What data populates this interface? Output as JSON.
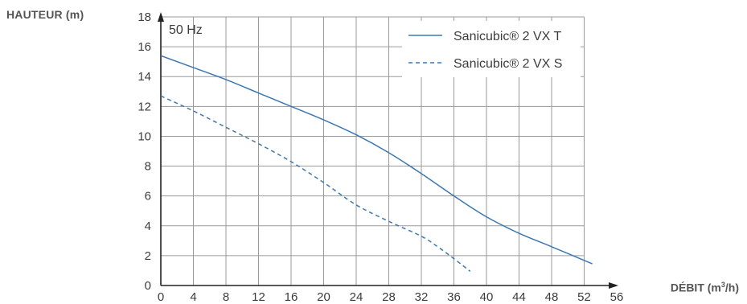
{
  "chart_data": {
    "type": "line",
    "ylabel": "HAUTEUR (m)",
    "xlabel_prefix": "DÉBIT (m",
    "xlabel_sup": "3",
    "xlabel_suffix": "/h)",
    "annotation": "50 Hz",
    "xlim": [
      0,
      56
    ],
    "ylim": [
      0,
      18
    ],
    "xticks": [
      0,
      4,
      8,
      12,
      16,
      20,
      24,
      28,
      32,
      36,
      40,
      44,
      48,
      52,
      56
    ],
    "yticks": [
      0,
      2,
      4,
      6,
      8,
      10,
      12,
      14,
      16,
      18
    ],
    "grid": true,
    "legend_position": "top-right",
    "series": [
      {
        "name": "Sanicubic® 2 VX T",
        "style": "solid",
        "color": "#3a78b5",
        "x": [
          0,
          4,
          8,
          12,
          16,
          20,
          24,
          28,
          32,
          36,
          40,
          44,
          48,
          53
        ],
        "y": [
          15.4,
          14.6,
          13.8,
          12.9,
          12.0,
          11.1,
          10.1,
          8.9,
          7.5,
          6.0,
          4.6,
          3.5,
          2.6,
          1.45
        ]
      },
      {
        "name": "Sanicubic® 2 VX S",
        "style": "dashed",
        "color": "#3a78b5",
        "x": [
          0,
          4,
          8,
          12,
          16,
          20,
          24,
          28,
          32,
          34,
          36,
          38
        ],
        "y": [
          12.7,
          11.7,
          10.6,
          9.5,
          8.3,
          6.9,
          5.4,
          4.3,
          3.3,
          2.6,
          1.8,
          0.95
        ]
      }
    ]
  }
}
